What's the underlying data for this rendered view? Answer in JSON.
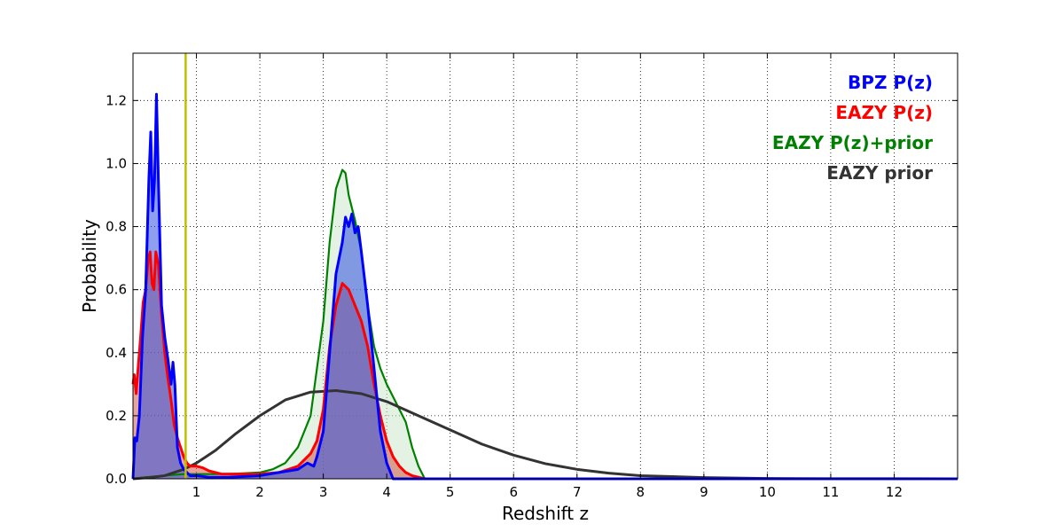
{
  "chart_data": {
    "type": "area",
    "xlabel": "Redshift z",
    "ylabel": "Probability",
    "xlim": [
      0,
      13
    ],
    "ylim": [
      0,
      1.35
    ],
    "x_ticks": [
      1,
      2,
      3,
      4,
      5,
      6,
      7,
      8,
      9,
      10,
      11,
      12
    ],
    "y_ticks": [
      0.0,
      0.2,
      0.4,
      0.6,
      0.8,
      1.0,
      1.2
    ],
    "grid": true,
    "legend_position": "top-right",
    "vline": {
      "x": 0.83,
      "color": "#bfbf00"
    },
    "series": [
      {
        "name": "BPZ P(z)",
        "color": "#0000ff",
        "fill": "#3050e0",
        "points": [
          [
            0.0,
            0.0
          ],
          [
            0.03,
            0.13
          ],
          [
            0.06,
            0.12
          ],
          [
            0.1,
            0.2
          ],
          [
            0.15,
            0.45
          ],
          [
            0.2,
            0.6
          ],
          [
            0.25,
            0.95
          ],
          [
            0.28,
            1.1
          ],
          [
            0.31,
            0.85
          ],
          [
            0.34,
            0.95
          ],
          [
            0.37,
            1.22
          ],
          [
            0.4,
            0.95
          ],
          [
            0.45,
            0.55
          ],
          [
            0.5,
            0.45
          ],
          [
            0.55,
            0.38
          ],
          [
            0.6,
            0.3
          ],
          [
            0.63,
            0.37
          ],
          [
            0.66,
            0.3
          ],
          [
            0.7,
            0.1
          ],
          [
            0.75,
            0.05
          ],
          [
            0.8,
            0.03
          ],
          [
            0.85,
            0.02
          ],
          [
            0.9,
            0.01
          ],
          [
            1.0,
            0.01
          ],
          [
            1.2,
            0.005
          ],
          [
            1.5,
            0.005
          ],
          [
            2.0,
            0.01
          ],
          [
            2.3,
            0.02
          ],
          [
            2.6,
            0.03
          ],
          [
            2.75,
            0.05
          ],
          [
            2.85,
            0.04
          ],
          [
            2.9,
            0.07
          ],
          [
            3.0,
            0.15
          ],
          [
            3.1,
            0.4
          ],
          [
            3.2,
            0.65
          ],
          [
            3.3,
            0.75
          ],
          [
            3.35,
            0.83
          ],
          [
            3.4,
            0.8
          ],
          [
            3.45,
            0.84
          ],
          [
            3.5,
            0.78
          ],
          [
            3.55,
            0.8
          ],
          [
            3.6,
            0.72
          ],
          [
            3.7,
            0.55
          ],
          [
            3.8,
            0.35
          ],
          [
            3.9,
            0.15
          ],
          [
            4.0,
            0.05
          ],
          [
            4.1,
            0.0
          ],
          [
            13.0,
            0.0
          ]
        ]
      },
      {
        "name": "EAZY P(z)",
        "color": "#ff0000",
        "fill": "#d05a4a",
        "points": [
          [
            0.0,
            0.3
          ],
          [
            0.02,
            0.33
          ],
          [
            0.05,
            0.27
          ],
          [
            0.08,
            0.35
          ],
          [
            0.12,
            0.45
          ],
          [
            0.16,
            0.56
          ],
          [
            0.2,
            0.6
          ],
          [
            0.24,
            0.7
          ],
          [
            0.27,
            0.72
          ],
          [
            0.3,
            0.62
          ],
          [
            0.33,
            0.6
          ],
          [
            0.36,
            0.72
          ],
          [
            0.4,
            0.68
          ],
          [
            0.45,
            0.52
          ],
          [
            0.5,
            0.4
          ],
          [
            0.55,
            0.32
          ],
          [
            0.6,
            0.25
          ],
          [
            0.65,
            0.17
          ],
          [
            0.7,
            0.13
          ],
          [
            0.75,
            0.1
          ],
          [
            0.8,
            0.07
          ],
          [
            0.85,
            0.05
          ],
          [
            0.9,
            0.04
          ],
          [
            1.0,
            0.04
          ],
          [
            1.1,
            0.035
          ],
          [
            1.2,
            0.025
          ],
          [
            1.4,
            0.015
          ],
          [
            1.6,
            0.015
          ],
          [
            2.0,
            0.015
          ],
          [
            2.3,
            0.02
          ],
          [
            2.6,
            0.04
          ],
          [
            2.8,
            0.08
          ],
          [
            2.9,
            0.12
          ],
          [
            3.0,
            0.22
          ],
          [
            3.1,
            0.42
          ],
          [
            3.2,
            0.55
          ],
          [
            3.3,
            0.62
          ],
          [
            3.4,
            0.6
          ],
          [
            3.5,
            0.55
          ],
          [
            3.6,
            0.5
          ],
          [
            3.7,
            0.42
          ],
          [
            3.8,
            0.3
          ],
          [
            3.9,
            0.2
          ],
          [
            4.0,
            0.12
          ],
          [
            4.1,
            0.07
          ],
          [
            4.2,
            0.04
          ],
          [
            4.3,
            0.02
          ],
          [
            4.4,
            0.01
          ],
          [
            4.6,
            0.0
          ],
          [
            13.0,
            0.0
          ]
        ]
      },
      {
        "name": "EAZY P(z)+prior",
        "color": "#008000",
        "fill": "#c8e6c8",
        "points": [
          [
            0.0,
            0.0
          ],
          [
            0.2,
            0.005
          ],
          [
            0.5,
            0.01
          ],
          [
            0.8,
            0.015
          ],
          [
            1.0,
            0.015
          ],
          [
            1.5,
            0.015
          ],
          [
            2.0,
            0.02
          ],
          [
            2.2,
            0.03
          ],
          [
            2.4,
            0.05
          ],
          [
            2.6,
            0.1
          ],
          [
            2.8,
            0.2
          ],
          [
            3.0,
            0.5
          ],
          [
            3.1,
            0.75
          ],
          [
            3.2,
            0.92
          ],
          [
            3.3,
            0.98
          ],
          [
            3.35,
            0.97
          ],
          [
            3.4,
            0.9
          ],
          [
            3.5,
            0.82
          ],
          [
            3.6,
            0.72
          ],
          [
            3.7,
            0.55
          ],
          [
            3.8,
            0.42
          ],
          [
            3.9,
            0.35
          ],
          [
            4.0,
            0.3
          ],
          [
            4.1,
            0.26
          ],
          [
            4.2,
            0.22
          ],
          [
            4.3,
            0.18
          ],
          [
            4.4,
            0.1
          ],
          [
            4.5,
            0.04
          ],
          [
            4.6,
            0.0
          ],
          [
            13.0,
            0.0
          ]
        ]
      },
      {
        "name": "EAZY prior",
        "color": "#333333",
        "fill": "none",
        "points": [
          [
            0.0,
            0.0
          ],
          [
            0.3,
            0.005
          ],
          [
            0.5,
            0.01
          ],
          [
            0.8,
            0.03
          ],
          [
            1.0,
            0.05
          ],
          [
            1.3,
            0.09
          ],
          [
            1.6,
            0.14
          ],
          [
            2.0,
            0.2
          ],
          [
            2.4,
            0.25
          ],
          [
            2.8,
            0.275
          ],
          [
            3.2,
            0.28
          ],
          [
            3.6,
            0.27
          ],
          [
            4.0,
            0.245
          ],
          [
            4.5,
            0.2
          ],
          [
            5.0,
            0.155
          ],
          [
            5.5,
            0.11
          ],
          [
            6.0,
            0.075
          ],
          [
            6.5,
            0.048
          ],
          [
            7.0,
            0.03
          ],
          [
            7.5,
            0.018
          ],
          [
            8.0,
            0.01
          ],
          [
            9.0,
            0.004
          ],
          [
            10.0,
            0.001
          ],
          [
            11.0,
            0.0005
          ],
          [
            13.0,
            0.0
          ]
        ]
      }
    ]
  }
}
